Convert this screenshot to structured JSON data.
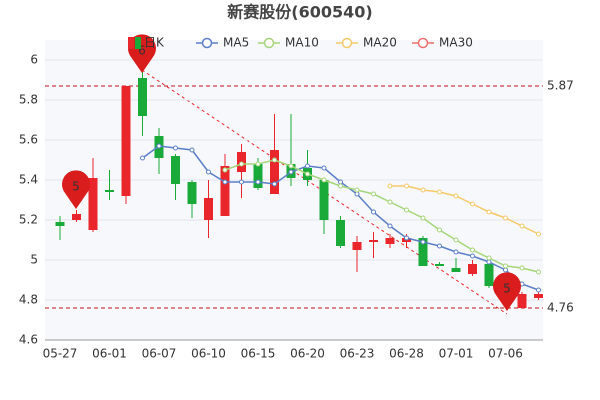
{
  "chart_data": {
    "type": "candlestick",
    "title": "新赛股份(600540)",
    "categories": [
      "05-27",
      null,
      null,
      "06-01",
      null,
      null,
      "06-07",
      null,
      null,
      "06-10",
      null,
      null,
      "06-15",
      null,
      null,
      "06-20",
      null,
      null,
      "06-23",
      null,
      null,
      "06-28",
      null,
      null,
      "07-01",
      null,
      null,
      "07-06",
      null,
      null
    ],
    "candle_name": "日K",
    "up_color": "#e8262c",
    "down_color": "#1aaa3a",
    "open": [
      5.19,
      5.2,
      5.15,
      5.35,
      5.32,
      5.91,
      5.62,
      5.52,
      5.39,
      5.2,
      5.22,
      5.44,
      5.48,
      5.33,
      5.48,
      5.46,
      5.4,
      5.2,
      5.05,
      5.09,
      5.08,
      5.09,
      5.11,
      4.98,
      4.96,
      4.93,
      4.98,
      4.82,
      4.76,
      4.81
    ],
    "high": [
      5.22,
      5.25,
      5.51,
      5.45,
      5.87,
      5.95,
      5.66,
      5.53,
      5.4,
      5.4,
      5.53,
      5.58,
      5.51,
      5.73,
      5.73,
      5.55,
      5.4,
      5.22,
      5.12,
      5.14,
      5.13,
      5.13,
      5.12,
      4.99,
      5.01,
      5.0,
      4.99,
      4.84,
      4.84,
      4.84
    ],
    "low": [
      5.1,
      5.19,
      5.14,
      5.3,
      5.28,
      5.62,
      5.43,
      5.3,
      5.21,
      5.11,
      5.22,
      5.31,
      5.35,
      5.33,
      5.37,
      5.37,
      5.13,
      5.06,
      4.94,
      5.01,
      5.06,
      5.06,
      4.97,
      4.97,
      4.94,
      4.92,
      4.86,
      4.76,
      4.76,
      4.8
    ],
    "close": [
      5.17,
      5.23,
      5.41,
      5.34,
      5.87,
      5.72,
      5.51,
      5.38,
      5.28,
      5.31,
      5.47,
      5.54,
      5.36,
      5.55,
      5.41,
      5.4,
      5.2,
      5.07,
      5.09,
      5.1,
      5.11,
      5.11,
      4.97,
      4.97,
      4.94,
      4.98,
      4.87,
      4.8,
      4.83,
      4.83
    ],
    "series": [
      {
        "name": "MA5",
        "color": "#5b7fc7",
        "values": [
          null,
          null,
          null,
          null,
          null,
          5.51,
          5.57,
          5.56,
          5.55,
          5.44,
          5.39,
          5.39,
          5.39,
          5.38,
          5.44,
          5.47,
          5.46,
          5.39,
          5.33,
          5.24,
          5.17,
          5.11,
          5.09,
          5.07,
          5.04,
          5.02,
          4.99,
          4.95,
          4.88,
          4.85
        ]
      },
      {
        "name": "MA10",
        "color": "#a5d57a",
        "values": [
          null,
          null,
          null,
          null,
          null,
          null,
          null,
          null,
          null,
          null,
          5.45,
          5.48,
          5.48,
          5.5,
          5.47,
          5.43,
          5.4,
          5.37,
          5.35,
          5.33,
          5.29,
          5.25,
          5.21,
          5.15,
          5.1,
          5.05,
          5.01,
          4.97,
          4.96,
          4.94
        ]
      },
      {
        "name": "MA20",
        "color": "#f5c96a",
        "values": [
          null,
          null,
          null,
          null,
          null,
          null,
          null,
          null,
          null,
          null,
          null,
          null,
          null,
          null,
          null,
          null,
          null,
          null,
          null,
          null,
          5.37,
          5.37,
          5.35,
          5.34,
          5.32,
          5.28,
          5.24,
          5.21,
          5.17,
          5.13
        ]
      },
      {
        "name": "MA30",
        "color": "#ef6f6f",
        "values": [
          null,
          null,
          null,
          null,
          null,
          null,
          null,
          null,
          null,
          null,
          null,
          null,
          null,
          null,
          null,
          null,
          null,
          null,
          null,
          null,
          null,
          null,
          null,
          null,
          null,
          null,
          null,
          null,
          null,
          null
        ]
      }
    ],
    "ylim": [
      4.6,
      6
    ],
    "yticks": [
      4.6,
      4.8,
      5,
      5.2,
      5.4,
      5.6,
      5.8,
      6
    ],
    "grid": true,
    "reference_lines": [
      5.87,
      4.76
    ],
    "markers": [
      "5",
      "6",
      "5"
    ]
  }
}
